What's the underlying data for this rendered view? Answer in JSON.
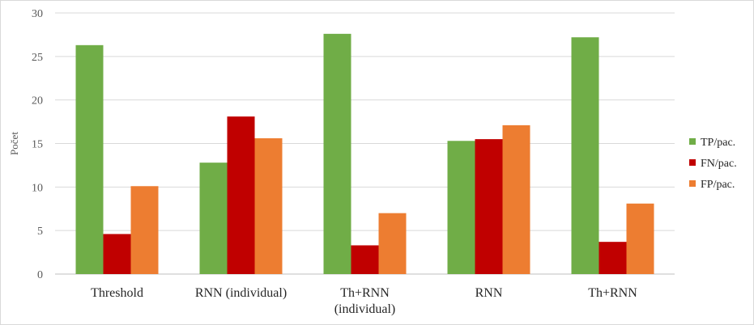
{
  "chart_data": {
    "type": "bar",
    "title": "",
    "xlabel": "",
    "ylabel": "Počet",
    "ylim": [
      0,
      30
    ],
    "yticks": [
      0,
      5,
      10,
      15,
      20,
      25,
      30
    ],
    "grid": true,
    "legend_position": "right",
    "categories": [
      [
        "Threshold"
      ],
      [
        "RNN (individual)"
      ],
      [
        "Th+RNN",
        "(individual)"
      ],
      [
        "RNN"
      ],
      [
        "Th+RNN"
      ]
    ],
    "series": [
      {
        "name": "TP/pac.",
        "color": "#70ad47",
        "values": [
          26.3,
          12.8,
          27.6,
          15.3,
          27.2
        ]
      },
      {
        "name": "FN/pac.",
        "color": "#c00000",
        "values": [
          4.6,
          18.1,
          3.3,
          15.5,
          3.7
        ]
      },
      {
        "name": "FP/pac.",
        "color": "#ed7d31",
        "values": [
          10.1,
          15.6,
          7.0,
          17.1,
          8.1
        ]
      }
    ]
  }
}
